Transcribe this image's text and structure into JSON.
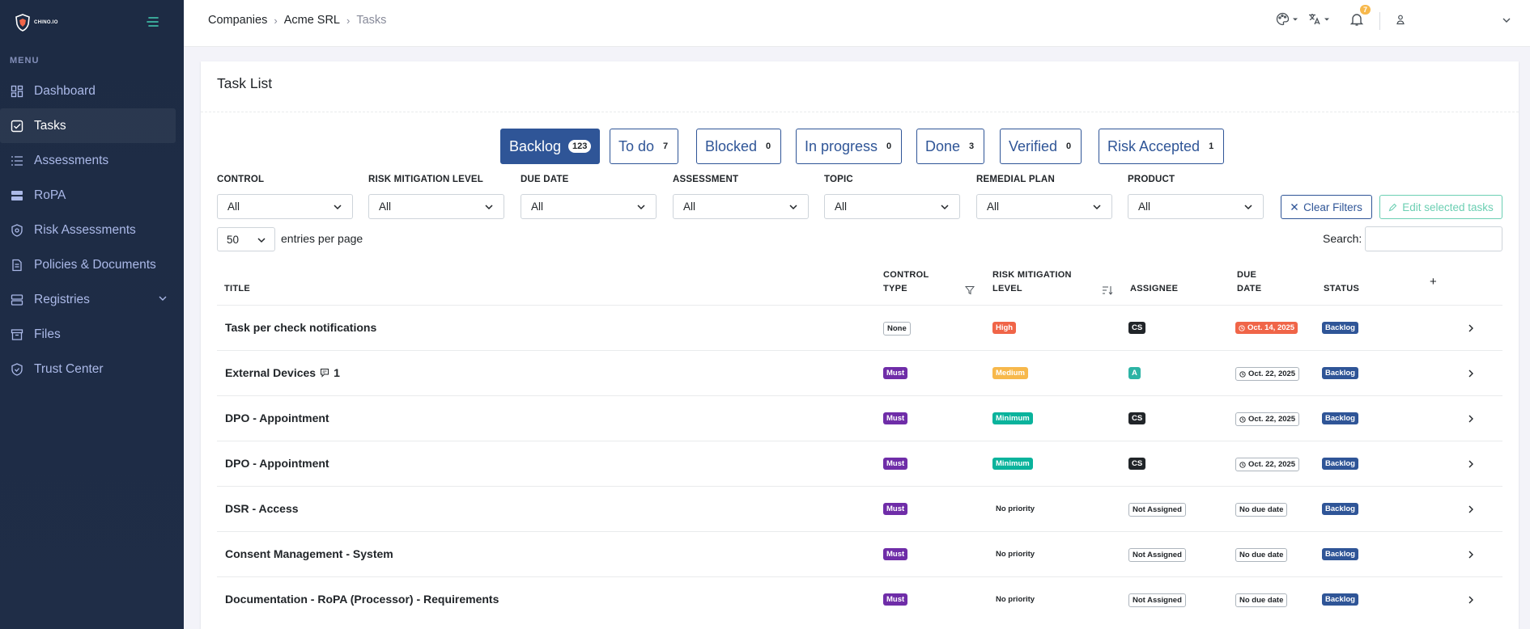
{
  "sidebar": {
    "logo_text": "CHINO.IO",
    "menu_title": "MENU",
    "items": [
      {
        "label": "Dashboard",
        "icon": "dashboard-icon"
      },
      {
        "label": "Tasks",
        "icon": "tasks-icon"
      },
      {
        "label": "Assessments",
        "icon": "list-icon"
      },
      {
        "label": "RoPA",
        "icon": "database-icon"
      },
      {
        "label": "Risk Assessments",
        "icon": "shield-icon"
      },
      {
        "label": "Policies & Documents",
        "icon": "document-icon"
      },
      {
        "label": "Registries",
        "icon": "registry-icon"
      },
      {
        "label": "Files",
        "icon": "archive-icon"
      },
      {
        "label": "Trust Center",
        "icon": "shield-check-icon"
      }
    ]
  },
  "header": {
    "breadcrumb": [
      "Companies",
      "Acme SRL",
      "Tasks"
    ],
    "notifications_count": "7"
  },
  "card": {
    "title": "Task List",
    "status_tabs": [
      {
        "label": "Backlog",
        "count": "123"
      },
      {
        "label": "To do",
        "count": "7"
      },
      {
        "label": "Blocked",
        "count": "0"
      },
      {
        "label": "In progress",
        "count": "0"
      },
      {
        "label": "Done",
        "count": "3"
      },
      {
        "label": "Verified",
        "count": "0"
      },
      {
        "label": "Risk Accepted",
        "count": "1"
      }
    ],
    "filters": [
      {
        "label": "CONTROL",
        "value": "All"
      },
      {
        "label": "RISK MITIGATION LEVEL",
        "value": "All"
      },
      {
        "label": "DUE DATE",
        "value": "All"
      },
      {
        "label": "ASSESSMENT",
        "value": "All"
      },
      {
        "label": "TOPIC",
        "value": "All"
      },
      {
        "label": "REMEDIAL PLAN",
        "value": "All"
      },
      {
        "label": "PRODUCT",
        "value": "All"
      }
    ],
    "clear_filters_label": "Clear Filters",
    "edit_selected_label": "Edit selected tasks",
    "entries_value": "50",
    "entries_label": "entries per page",
    "search_label": "Search:",
    "table": {
      "headers": {
        "title": "TITLE",
        "control_type_1": "CONTROL",
        "control_type_2": "TYPE",
        "risk_1": "RISK MITIGATION",
        "risk_2": "LEVEL",
        "assignee": "ASSIGNEE",
        "due_1": "DUE",
        "due_2": "DATE",
        "status": "STATUS",
        "add": "+"
      },
      "rows": [
        {
          "title": "Task per check notifications",
          "comments": "",
          "control": "None",
          "risk": "High",
          "assignee": "CS",
          "due": "Oct. 14, 2025",
          "status": "Backlog"
        },
        {
          "title": "External Devices",
          "comments": "1",
          "control": "Must",
          "risk": "Medium",
          "assignee": "A",
          "due": "Oct. 22, 2025",
          "status": "Backlog"
        },
        {
          "title": "DPO - Appointment",
          "comments": "",
          "control": "Must",
          "risk": "Minimum",
          "assignee": "CS",
          "due": "Oct. 22, 2025",
          "status": "Backlog"
        },
        {
          "title": "DPO - Appointment",
          "comments": "",
          "control": "Must",
          "risk": "Minimum",
          "assignee": "CS",
          "due": "Oct. 22, 2025",
          "status": "Backlog"
        },
        {
          "title": "DSR - Access",
          "comments": "",
          "control": "Must",
          "risk": "No priority",
          "assignee": "Not Assigned",
          "due": "No due date",
          "status": "Backlog"
        },
        {
          "title": "Consent Management - System",
          "comments": "",
          "control": "Must",
          "risk": "No priority",
          "assignee": "Not Assigned",
          "due": "No due date",
          "status": "Backlog"
        },
        {
          "title": "Documentation - RoPA (Processor) - Requirements",
          "comments": "",
          "control": "Must",
          "risk": "No priority",
          "assignee": "Not Assigned",
          "due": "No due date",
          "status": "Backlog"
        }
      ]
    }
  },
  "colors": {
    "sidebar_bg": "#1d2b44",
    "primary": "#2f5597",
    "must": "#6f2da8",
    "high": "#f06548",
    "medium": "#f7b84b",
    "minimum": "#0ab39c",
    "edit_btn": "#6ccfb3"
  }
}
